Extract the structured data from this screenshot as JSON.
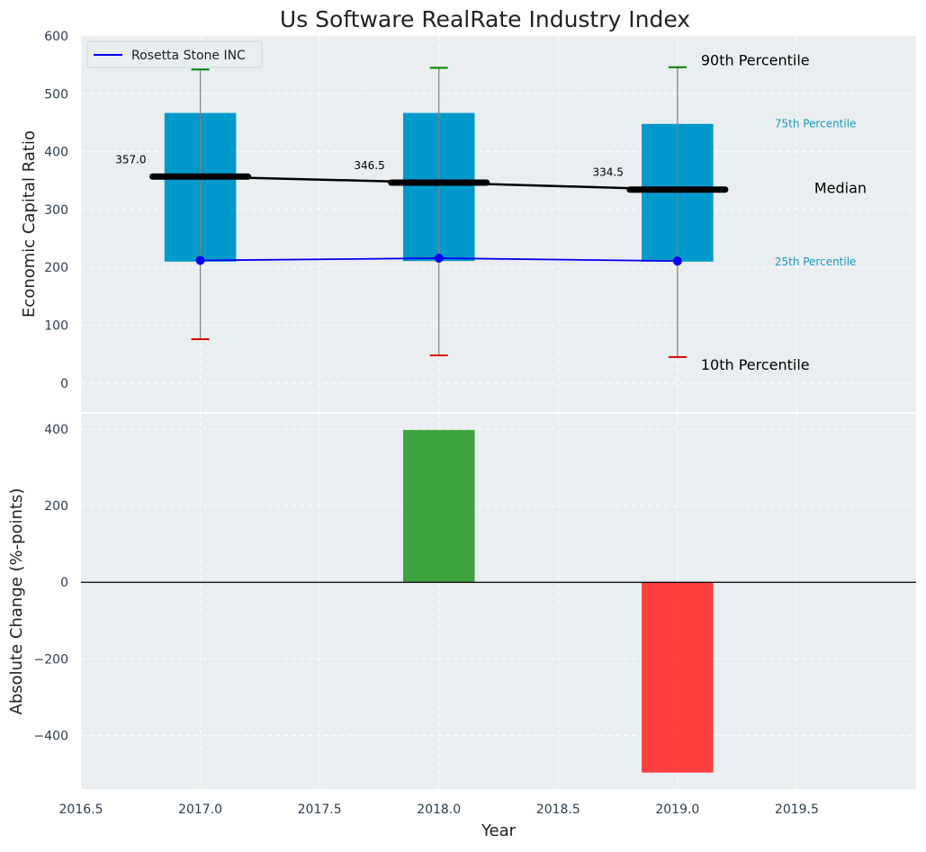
{
  "chart_data": [
    {
      "type": "box-percentile",
      "title": "Us Software RealRate Industry Index",
      "ylabel": "Economic Capital Ratio",
      "xlim": [
        2016.5,
        2020.0
      ],
      "ylim": [
        -50,
        600
      ],
      "yticks": [
        0,
        100,
        200,
        300,
        400,
        500,
        600
      ],
      "grid": true,
      "legend": {
        "position": "top-left",
        "entries": [
          "Rosetta Stone INC"
        ]
      },
      "x": [
        2017,
        2018,
        2019
      ],
      "p10": [
        76,
        48,
        45
      ],
      "p25": [
        210,
        211,
        210
      ],
      "median": [
        357.0,
        346.5,
        334.5
      ],
      "median_labels": [
        "357.0",
        "346.5",
        "334.5"
      ],
      "p75": [
        467,
        467,
        448
      ],
      "p90": [
        542,
        545,
        546
      ],
      "series": [
        {
          "name": "Rosetta Stone INC",
          "values": [
            212,
            216,
            211
          ],
          "color": "#0000ee"
        }
      ],
      "annotations": {
        "p90": "90th Percentile",
        "p75": "75th Percentile",
        "median": "Median",
        "p25": "25th Percentile",
        "p10": "10th Percentile"
      },
      "colors": {
        "box": "#0099cc",
        "median": "#000000",
        "p90_cap": "#008000",
        "p10_cap": "#dd0000",
        "whisker": "#808080",
        "background": "#eaeef0"
      }
    },
    {
      "type": "bar",
      "xlabel": "Year",
      "ylabel": "Absolute Change (%-points)",
      "xlim": [
        2016.5,
        2020.0
      ],
      "ylim": [
        -540,
        440
      ],
      "xticks": [
        "2016.5",
        "2017.0",
        "2017.5",
        "2018.0",
        "2018.5",
        "2019.0",
        "2019.5"
      ],
      "yticks": [
        -400,
        -200,
        0,
        200,
        400
      ],
      "yticklabels": [
        "−400",
        "−200",
        "0",
        "200",
        "400"
      ],
      "grid": true,
      "x": [
        2018,
        2019
      ],
      "values": [
        398,
        -497
      ],
      "colors": {
        "positive": "#2e9a2e",
        "negative": "#ff2b2b",
        "zero_line": "#000000"
      }
    }
  ]
}
